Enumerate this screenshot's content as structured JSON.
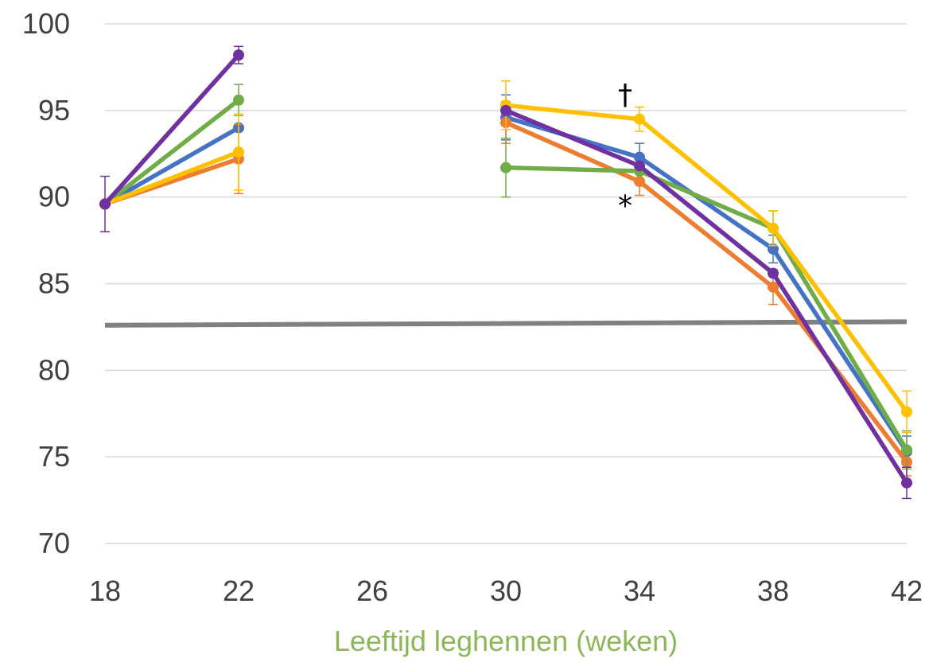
{
  "chart_data": {
    "type": "line",
    "title": "",
    "xlabel": "Leeftijd leghennen (weken)",
    "ylabel": "",
    "xlim": [
      18,
      42
    ],
    "ylim": [
      70,
      100
    ],
    "x_ticks": [
      18,
      22,
      26,
      30,
      34,
      38,
      42
    ],
    "y_ticks": [
      70,
      75,
      80,
      85,
      90,
      95,
      100
    ],
    "grid": "horizontal",
    "legend": "none",
    "series": [
      {
        "color": "#4472c4",
        "segments": [
          [
            {
              "x": 18,
              "y": 89.6,
              "err": 0
            },
            {
              "x": 22,
              "y": 94.0,
              "err": 0
            }
          ],
          [
            {
              "x": 30,
              "y": 94.6,
              "err": 1.3
            },
            {
              "x": 34,
              "y": 92.3,
              "err": 0.8
            },
            {
              "x": 38,
              "y": 87.0,
              "err": 0.8
            },
            {
              "x": 42,
              "y": 75.3,
              "err": 0.9
            }
          ]
        ]
      },
      {
        "color": "#ed7d31",
        "segments": [
          [
            {
              "x": 18,
              "y": 89.6,
              "err": 0
            },
            {
              "x": 22,
              "y": 92.2,
              "err": 2.0
            }
          ],
          [
            {
              "x": 30,
              "y": 94.3,
              "err": 1.2
            },
            {
              "x": 34,
              "y": 90.9,
              "err": 0.8
            },
            {
              "x": 38,
              "y": 84.8,
              "err": 1.0
            },
            {
              "x": 42,
              "y": 74.7,
              "err": 0.8
            }
          ]
        ]
      },
      {
        "color": "#70ad47",
        "segments": [
          [
            {
              "x": 18,
              "y": 89.6,
              "err": 0
            },
            {
              "x": 22,
              "y": 95.6,
              "err": 0.9
            }
          ],
          [
            {
              "x": 30,
              "y": 91.7,
              "err": 1.7
            },
            {
              "x": 34,
              "y": 91.5,
              "err": 0
            },
            {
              "x": 38,
              "y": 88.2,
              "err": 1.0
            },
            {
              "x": 42,
              "y": 75.4,
              "err": 1.1
            }
          ]
        ]
      },
      {
        "color": "#ffc000",
        "segments": [
          [
            {
              "x": 18,
              "y": 89.6,
              "err": 0
            },
            {
              "x": 22,
              "y": 92.6,
              "err": 2.2
            }
          ],
          [
            {
              "x": 30,
              "y": 95.3,
              "err": 1.4
            },
            {
              "x": 34,
              "y": 94.5,
              "err": 0.7
            },
            {
              "x": 38,
              "y": 88.2,
              "err": 1.0
            },
            {
              "x": 42,
              "y": 77.6,
              "err": 1.2
            }
          ]
        ]
      },
      {
        "color": "#7030a0",
        "segments": [
          [
            {
              "x": 18,
              "y": 89.6,
              "err": 1.6
            },
            {
              "x": 22,
              "y": 98.2,
              "err": 0.5
            }
          ],
          [
            {
              "x": 30,
              "y": 95.0,
              "err": 0
            },
            {
              "x": 34,
              "y": 91.8,
              "err": 0
            },
            {
              "x": 38,
              "y": 85.6,
              "err": 0
            },
            {
              "x": 42,
              "y": 73.5,
              "err": 0.9
            }
          ]
        ]
      }
    ],
    "reference_line": {
      "color": "#808080",
      "x": [
        18,
        42
      ],
      "y": [
        82.6,
        82.8
      ]
    },
    "annotations": [
      {
        "text": "†",
        "x": 34,
        "y": 95.9
      },
      {
        "text": "*",
        "x": 34,
        "y": 89.5
      }
    ]
  }
}
